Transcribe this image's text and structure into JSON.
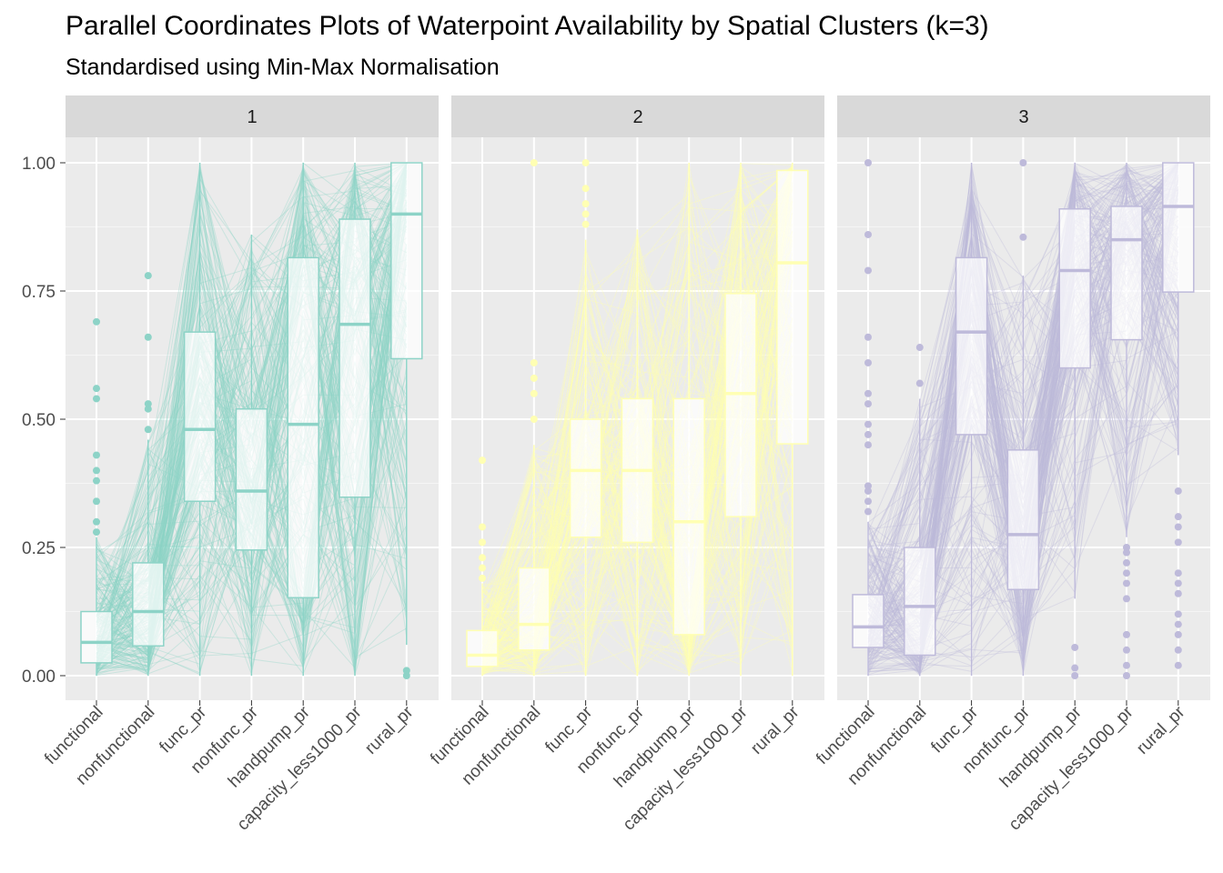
{
  "title": "Parallel Coordinates Plots of Waterpoint Availability by Spatial Clusters (k=3)",
  "subtitle": "Standardised using Min-Max Normalisation",
  "chart_data": {
    "type": "parallel-coordinates",
    "variables": [
      "functional",
      "nonfunctional",
      "func_pr",
      "nonfunc_pr",
      "handpump_pr",
      "capacity_less1000_pr",
      "rural_pr"
    ],
    "y_ticks": [
      "0.00",
      "0.25",
      "0.50",
      "0.75",
      "1.00"
    ],
    "y_range": [
      0,
      1
    ],
    "grid": true,
    "panels": [
      {
        "label": "1",
        "color": "#8dd3c7",
        "boxplots": [
          {
            "q1": 0.025,
            "median": 0.065,
            "q3": 0.125,
            "whisker_low": 0.0,
            "whisker_high": 0.27,
            "outliers": [
              0.28,
              0.3,
              0.34,
              0.38,
              0.4,
              0.43,
              0.54,
              0.56,
              0.69
            ]
          },
          {
            "q1": 0.058,
            "median": 0.125,
            "q3": 0.22,
            "whisker_low": 0.0,
            "whisker_high": 0.46,
            "outliers": [
              0.48,
              0.52,
              0.53,
              0.66,
              0.78
            ]
          },
          {
            "q1": 0.34,
            "median": 0.48,
            "q3": 0.67,
            "whisker_low": 0.0,
            "whisker_high": 1.0,
            "outliers": []
          },
          {
            "q1": 0.245,
            "median": 0.36,
            "q3": 0.52,
            "whisker_low": 0.0,
            "whisker_high": 0.86,
            "outliers": []
          },
          {
            "q1": 0.152,
            "median": 0.49,
            "q3": 0.815,
            "whisker_low": 0.0,
            "whisker_high": 1.0,
            "outliers": []
          },
          {
            "q1": 0.348,
            "median": 0.685,
            "q3": 0.89,
            "whisker_low": 0.0,
            "whisker_high": 1.0,
            "outliers": []
          },
          {
            "q1": 0.618,
            "median": 0.9,
            "q3": 1.0,
            "whisker_low": 0.06,
            "whisker_high": 1.0,
            "outliers": [
              0.0,
              0.01
            ]
          }
        ]
      },
      {
        "label": "2",
        "color": "#ffffb3",
        "boxplots": [
          {
            "q1": 0.018,
            "median": 0.04,
            "q3": 0.088,
            "whisker_low": 0.0,
            "whisker_high": 0.18,
            "outliers": [
              0.19,
              0.21,
              0.23,
              0.26,
              0.29,
              0.42
            ]
          },
          {
            "q1": 0.05,
            "median": 0.1,
            "q3": 0.21,
            "whisker_low": 0.0,
            "whisker_high": 0.45,
            "outliers": [
              0.5,
              0.55,
              0.58,
              0.61,
              1.0
            ]
          },
          {
            "q1": 0.27,
            "median": 0.4,
            "q3": 0.5,
            "whisker_low": 0.0,
            "whisker_high": 0.85,
            "outliers": [
              0.88,
              0.9,
              0.92,
              0.95,
              1.0
            ]
          },
          {
            "q1": 0.26,
            "median": 0.4,
            "q3": 0.54,
            "whisker_low": 0.0,
            "whisker_high": 0.87,
            "outliers": []
          },
          {
            "q1": 0.08,
            "median": 0.3,
            "q3": 0.54,
            "whisker_low": 0.0,
            "whisker_high": 1.0,
            "outliers": []
          },
          {
            "q1": 0.31,
            "median": 0.55,
            "q3": 0.745,
            "whisker_low": 0.0,
            "whisker_high": 1.0,
            "outliers": []
          },
          {
            "q1": 0.452,
            "median": 0.805,
            "q3": 0.985,
            "whisker_low": 0.0,
            "whisker_high": 1.0,
            "outliers": []
          }
        ]
      },
      {
        "label": "3",
        "color": "#bebada",
        "boxplots": [
          {
            "q1": 0.055,
            "median": 0.095,
            "q3": 0.158,
            "whisker_low": 0.0,
            "whisker_high": 0.3,
            "outliers": [
              0.32,
              0.34,
              0.36,
              0.37,
              0.45,
              0.47,
              0.49,
              0.53,
              0.55,
              0.61,
              0.66,
              0.79,
              0.86,
              1.0
            ]
          },
          {
            "q1": 0.04,
            "median": 0.135,
            "q3": 0.25,
            "whisker_low": 0.0,
            "whisker_high": 0.54,
            "outliers": [
              0.57,
              0.64
            ]
          },
          {
            "q1": 0.47,
            "median": 0.67,
            "q3": 0.815,
            "whisker_low": 0.0,
            "whisker_high": 1.0,
            "outliers": []
          },
          {
            "q1": 0.168,
            "median": 0.275,
            "q3": 0.44,
            "whisker_low": 0.0,
            "whisker_high": 0.78,
            "outliers": [
              0.855,
              1.0
            ]
          },
          {
            "q1": 0.6,
            "median": 0.79,
            "q3": 0.91,
            "whisker_low": 0.15,
            "whisker_high": 1.0,
            "outliers": [
              0.0,
              0.015,
              0.055
            ]
          },
          {
            "q1": 0.655,
            "median": 0.85,
            "q3": 0.915,
            "whisker_low": 0.27,
            "whisker_high": 1.0,
            "outliers": [
              0.0,
              0.02,
              0.05,
              0.08,
              0.15,
              0.18,
              0.2,
              0.22,
              0.24,
              0.25
            ]
          },
          {
            "q1": 0.748,
            "median": 0.915,
            "q3": 1.0,
            "whisker_low": 0.43,
            "whisker_high": 1.0,
            "outliers": [
              0.02,
              0.05,
              0.08,
              0.1,
              0.12,
              0.16,
              0.18,
              0.2,
              0.26,
              0.29,
              0.31,
              0.36
            ]
          }
        ]
      }
    ]
  }
}
